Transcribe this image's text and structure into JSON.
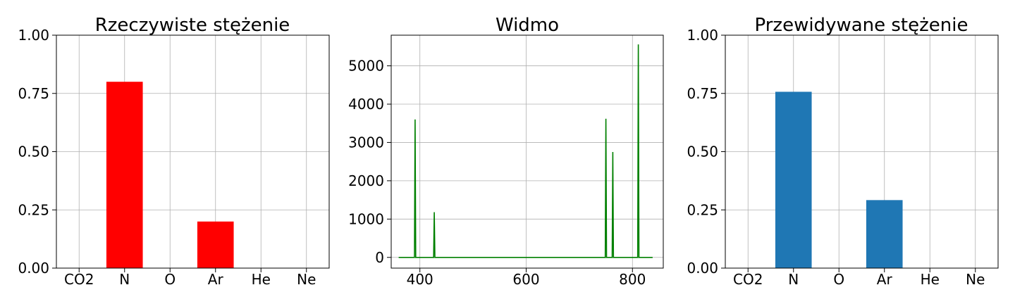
{
  "chart_data": [
    {
      "type": "bar",
      "title": "Rzeczywiste stężenie",
      "categories": [
        "CO2",
        "N",
        "O",
        "Ar",
        "He",
        "Ne"
      ],
      "values": [
        0,
        0.8,
        0,
        0.2,
        0,
        0
      ],
      "ylim": [
        0,
        1
      ],
      "yticks": [
        0,
        0.25,
        0.5,
        0.75,
        1
      ],
      "ytick_labels": [
        "0.00",
        "0.25",
        "0.50",
        "0.75",
        "1.00"
      ],
      "grid": true,
      "color": "#ff0000"
    },
    {
      "type": "line",
      "title": "Widmo",
      "xlim": [
        346,
        858
      ],
      "ylim": [
        -280,
        5800
      ],
      "xticks": [
        400,
        600,
        800
      ],
      "xtick_labels": [
        "400",
        "600",
        "800"
      ],
      "yticks": [
        0,
        1000,
        2000,
        3000,
        4000,
        5000
      ],
      "ytick_labels": [
        "0",
        "1000",
        "2000",
        "3000",
        "4000",
        "5000"
      ],
      "grid": true,
      "color": "#008000",
      "x_range": [
        360,
        838
      ],
      "peaks": [
        {
          "x": 391,
          "y": 3600
        },
        {
          "x": 427,
          "y": 1180
        },
        {
          "x": 750,
          "y": 3620
        },
        {
          "x": 763,
          "y": 2750
        },
        {
          "x": 811,
          "y": 5560
        }
      ]
    },
    {
      "type": "bar",
      "title": "Przewidywane stężenie",
      "categories": [
        "CO2",
        "N",
        "O",
        "Ar",
        "He",
        "Ne"
      ],
      "values": [
        0,
        0.757,
        0,
        0.292,
        0,
        0
      ],
      "ylim": [
        0,
        1
      ],
      "yticks": [
        0,
        0.25,
        0.5,
        0.75,
        1
      ],
      "ytick_labels": [
        "0.00",
        "0.25",
        "0.50",
        "0.75",
        "1.00"
      ],
      "grid": true,
      "color": "#1f77b4"
    }
  ]
}
